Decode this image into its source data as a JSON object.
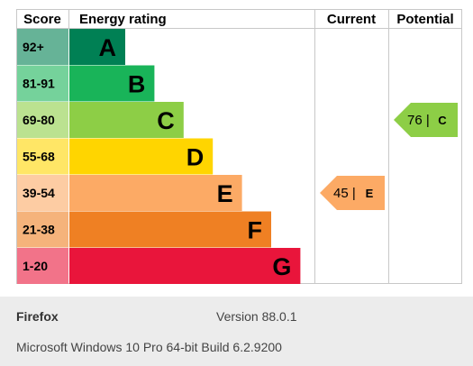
{
  "chart_data": {
    "type": "bar",
    "headers": {
      "score": "Score",
      "rating": "Energy rating",
      "current": "Current",
      "potential": "Potential"
    },
    "bands": [
      {
        "score": "92+",
        "letter": "A",
        "color": "#008054",
        "score_bg": "#66b397"
      },
      {
        "score": "81-91",
        "letter": "B",
        "color": "#19b459",
        "score_bg": "#75d29b"
      },
      {
        "score": "69-80",
        "letter": "C",
        "color": "#8dce46",
        "score_bg": "#bbe290"
      },
      {
        "score": "55-68",
        "letter": "D",
        "color": "#ffd500",
        "score_bg": "#ffe666"
      },
      {
        "score": "39-54",
        "letter": "E",
        "color": "#fcaa65",
        "score_bg": "#fdcca3"
      },
      {
        "score": "21-38",
        "letter": "F",
        "color": "#ef8023",
        "score_bg": "#f5b37b"
      },
      {
        "score": "1-20",
        "letter": "G",
        "color": "#e9153b",
        "score_bg": "#f27389"
      }
    ],
    "current": {
      "value": 45,
      "letter": "E",
      "text": "45 |",
      "color": "#fcaa65"
    },
    "potential": {
      "value": 76,
      "letter": "C",
      "text": "76 |",
      "color": "#8dce46"
    }
  },
  "footer": {
    "browser": "Firefox",
    "version": "Version 88.0.1",
    "os": "Microsoft Windows 10 Pro 64-bit Build 6.2.9200"
  }
}
